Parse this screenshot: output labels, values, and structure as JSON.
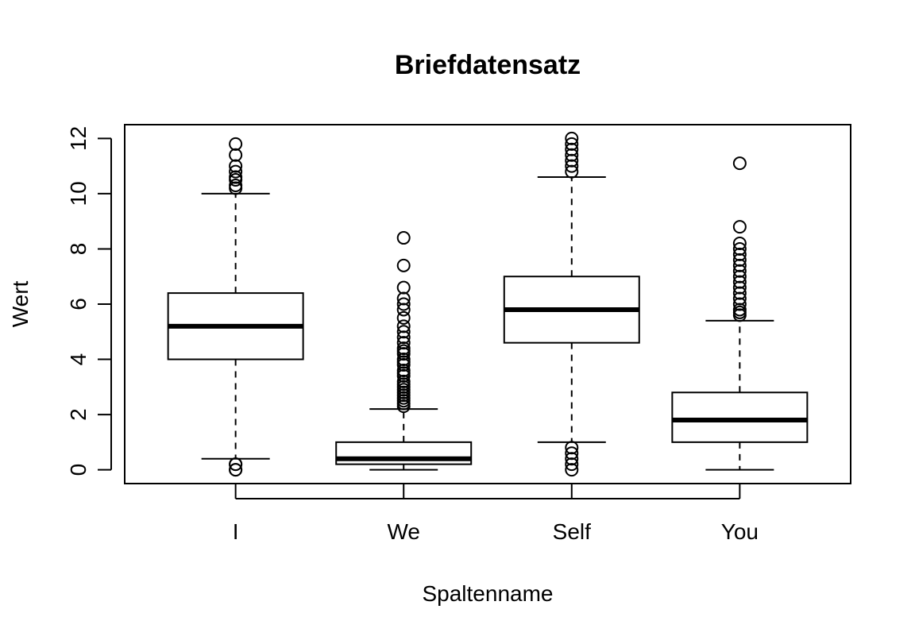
{
  "chart_data": {
    "type": "boxplot",
    "title": "Briefdatensatz",
    "xlabel": "Spaltenname",
    "ylabel": "Wert",
    "ylim": [
      -0.5,
      12.5
    ],
    "yticks": [
      0,
      2,
      4,
      6,
      8,
      10,
      12
    ],
    "ytick_labels": [
      "0",
      "2",
      "4",
      "6",
      "8",
      "10",
      "12"
    ],
    "grid": false,
    "legend": "none",
    "categories": [
      "I",
      "We",
      "Self",
      "You"
    ],
    "boxes": [
      {
        "name": "I",
        "whisker_low": 0.4,
        "q1": 4.0,
        "median": 5.2,
        "q3": 6.4,
        "whisker_high": 10.0,
        "outliers": [
          0.0,
          0.0,
          0.2,
          0.2,
          10.2,
          10.3,
          10.5,
          10.6,
          10.8,
          11.0,
          11.4,
          11.8
        ]
      },
      {
        "name": "We",
        "whisker_low": 0.0,
        "q1": 0.2,
        "median": 0.4,
        "q3": 1.0,
        "whisker_high": 2.2,
        "outliers": [
          2.3,
          2.4,
          2.5,
          2.6,
          2.7,
          2.8,
          2.9,
          3.0,
          3.1,
          3.2,
          3.4,
          3.5,
          3.6,
          3.8,
          3.9,
          4.0,
          4.2,
          4.3,
          4.4,
          4.6,
          4.8,
          5.0,
          5.2,
          5.5,
          5.8,
          6.0,
          6.2,
          6.6,
          7.4,
          8.4
        ]
      },
      {
        "name": "Self",
        "whisker_low": 1.0,
        "q1": 4.6,
        "median": 5.8,
        "q3": 7.0,
        "whisker_high": 10.6,
        "outliers": [
          0.0,
          0.2,
          0.4,
          0.6,
          0.8,
          10.8,
          11.0,
          11.2,
          11.4,
          11.6,
          11.8,
          12.0
        ]
      },
      {
        "name": "You",
        "whisker_low": 0.0,
        "q1": 1.0,
        "median": 1.8,
        "q3": 2.8,
        "whisker_high": 5.4,
        "outliers": [
          5.6,
          5.7,
          5.8,
          6.0,
          6.2,
          6.4,
          6.6,
          6.8,
          7.0,
          7.2,
          7.4,
          7.6,
          7.8,
          8.0,
          8.2,
          8.8,
          11.1
        ]
      }
    ]
  }
}
